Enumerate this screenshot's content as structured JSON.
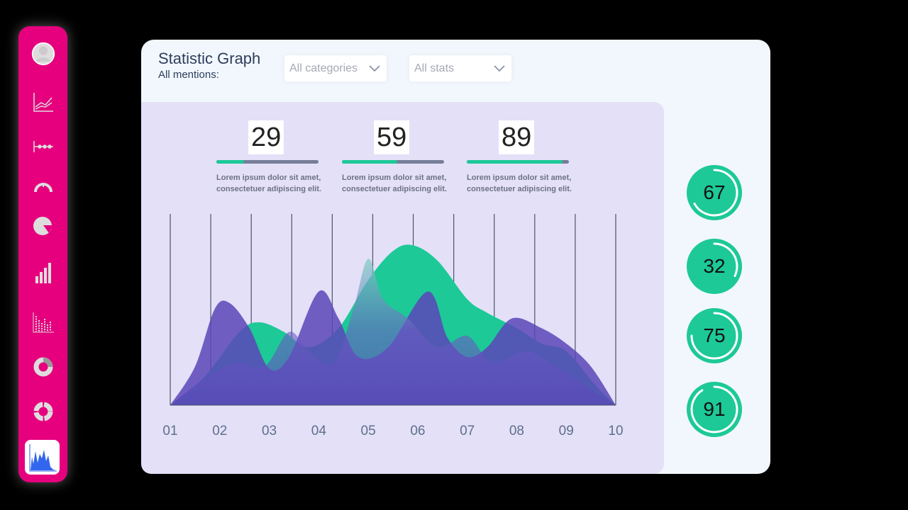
{
  "header": {
    "title": "Statistic Graph",
    "subtitle": "All mentions:"
  },
  "filters": [
    {
      "value": "All categories"
    },
    {
      "value": "All stats"
    }
  ],
  "stats": [
    {
      "value": "29",
      "progress": 0.27,
      "desc1": "Lorem  ipsum dolor sit amet,",
      "desc2": "consectetuer adipiscing elit."
    },
    {
      "value": "59",
      "progress": 0.54,
      "desc1": "Lorem  ipsum dolor sit amet,",
      "desc2": "consectetuer adipiscing elit."
    },
    {
      "value": "89",
      "progress": 0.94,
      "desc1": "Lorem  ipsum dolor sit amet,",
      "desc2": "consectetuer adipiscing elit."
    }
  ],
  "rings": [
    {
      "value": "67",
      "fraction": 0.67
    },
    {
      "value": "32",
      "fraction": 0.32
    },
    {
      "value": "75",
      "fraction": 0.75
    },
    {
      "value": "91",
      "fraction": 0.91
    }
  ],
  "sidebar": {
    "items": [
      "user-icon",
      "line-chart-icon",
      "dot-line-icon",
      "gauge-icon",
      "pie-chart-icon",
      "bar-chart-icon",
      "dot-bar-chart-icon",
      "donut-chart-icon",
      "ring-chart-icon",
      "area-chart-icon"
    ],
    "active": "area-chart-icon"
  },
  "colors": {
    "sidebar": "#e6007e",
    "accent": "#1dc997",
    "purple": "#5b45b8"
  },
  "chart_data": {
    "type": "area",
    "categories": [
      "01",
      "02",
      "03",
      "04",
      "05",
      "06",
      "07",
      "08",
      "09",
      "10"
    ],
    "ylim": [
      0,
      100
    ],
    "series": [
      {
        "color": "#1dc997",
        "points": [
          [
            1,
            0
          ],
          [
            1.7,
            15
          ],
          [
            2.4,
            38
          ],
          [
            2.8,
            43
          ],
          [
            3.3,
            38
          ],
          [
            3.8,
            30
          ],
          [
            4.4,
            40
          ],
          [
            5,
            65
          ],
          [
            5.5,
            80
          ],
          [
            5.9,
            83
          ],
          [
            6.4,
            75
          ],
          [
            7,
            55
          ],
          [
            7.4,
            48
          ],
          [
            8,
            40
          ],
          [
            8.5,
            32
          ],
          [
            9,
            28
          ],
          [
            9.6,
            10
          ],
          [
            10,
            0
          ]
        ]
      },
      {
        "color": "#5b45b8",
        "points": [
          [
            1,
            0
          ],
          [
            1.5,
            20
          ],
          [
            1.9,
            50
          ],
          [
            2.2,
            53
          ],
          [
            2.6,
            40
          ],
          [
            3,
            19
          ],
          [
            3.4,
            25
          ],
          [
            4,
            59
          ],
          [
            4.4,
            45
          ],
          [
            4.8,
            25
          ],
          [
            5.4,
            30
          ],
          [
            6.2,
            59
          ],
          [
            6.6,
            35
          ],
          [
            7,
            25
          ],
          [
            7.4,
            30
          ],
          [
            7.9,
            45
          ],
          [
            8.5,
            40
          ],
          [
            9,
            32
          ],
          [
            9.5,
            20
          ],
          [
            10,
            0
          ]
        ]
      },
      {
        "color": "#7b6cc9",
        "points": [
          [
            1,
            0
          ],
          [
            1.6,
            12
          ],
          [
            2.3,
            22
          ],
          [
            2.9,
            20
          ],
          [
            3.4,
            38
          ],
          [
            3.8,
            28
          ],
          [
            4.3,
            22
          ],
          [
            4.7,
            50
          ],
          [
            5,
            76
          ],
          [
            5.3,
            55
          ],
          [
            5.8,
            45
          ],
          [
            6.4,
            30
          ],
          [
            7,
            36
          ],
          [
            7.5,
            22
          ],
          [
            8.2,
            28
          ],
          [
            8.8,
            20
          ],
          [
            9.4,
            10
          ],
          [
            10,
            0
          ]
        ]
      }
    ]
  }
}
